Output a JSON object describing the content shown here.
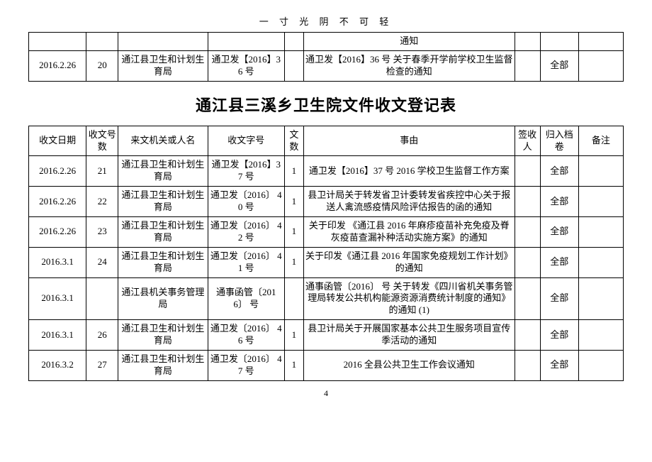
{
  "header_motto": "一 寸 光 阴 不 可 轻",
  "page_number": "4",
  "top_table": {
    "row0": {
      "c0": "",
      "c1": "",
      "c2": "",
      "c3": "",
      "c4": "",
      "c5": "通知",
      "c6": "",
      "c7": "",
      "c8": ""
    },
    "row1": {
      "c0": "2016.2.26",
      "c1": "20",
      "c2": "通江县卫生和计划生育局",
      "c3": "通卫发【2016】36 号",
      "c4": "",
      "c5": "通卫发【2016】36 号 关于春季开学前学校卫生监督检查的通知",
      "c6": "",
      "c7": "全部",
      "c8": ""
    }
  },
  "main_title": "通江县三溪乡卫生院文件收文登记表",
  "headers": {
    "h0": "收文日期",
    "h1": "收文号数",
    "h2": "来文机关或人名",
    "h3": "收文字号",
    "h4": "文数",
    "h5": "事由",
    "h6": "签收人",
    "h7": "归入档卷",
    "h8": "备注"
  },
  "rows": [
    {
      "c0": "2016.2.26",
      "c1": "21",
      "c2": "通江县卫生和计划生育局",
      "c3": "通卫发【2016】37 号",
      "c4": "1",
      "c5": "通卫发【2016】37 号 2016 学校卫生监督工作方案",
      "c6": "",
      "c7": "全部",
      "c8": ""
    },
    {
      "c0": "2016.2.26",
      "c1": "22",
      "c2": "通江县卫生和计划生育局",
      "c3": "通卫发〔2016〕 40  号",
      "c4": "1",
      "c5": "县卫计局关于转发省卫计委转发省疾控中心关于报送人禽流感疫情风险评估报告的函的通知",
      "c6": "",
      "c7": "全部",
      "c8": ""
    },
    {
      "c0": "2016.2.26",
      "c1": "23",
      "c2": "通江县卫生和计划生育局",
      "c3": "通卫发〔2016〕 42  号",
      "c4": "1",
      "c5": "关于印发 《通江县 2016 年麻疹疫苗补充免疫及脊灰疫苗查漏补种活动实施方案》的通知",
      "c6": "",
      "c7": "全部",
      "c8": ""
    },
    {
      "c0": "2016.3.1",
      "c1": "24",
      "c2": "通江县卫生和计划生育局",
      "c3": "通卫发〔2016〕  41 号",
      "c4": "1",
      "c5": "关于印发《通江县 2016 年国家免疫规划工作计划》的通知",
      "c6": "",
      "c7": "全部",
      "c8": ""
    },
    {
      "c0": "2016.3.1",
      "c1": "",
      "c2": "通江县机关事务管理局",
      "c3": "通事函管〔2016〕  号",
      "c4": "",
      "c5": "通事函管〔2016〕  号 关于转发《四川省机关事务管理局转发公共机构能源资源消费统计制度的通知》的通知 (1)",
      "c6": "",
      "c7": "全部",
      "c8": ""
    },
    {
      "c0": "2016.3.1",
      "c1": "26",
      "c2": "通江县卫生和计划生育局",
      "c3": "通卫发〔2016〕 46  号",
      "c4": "1",
      "c5": "县卫计局关于开展国家基本公共卫生服务项目宣传季活动的通知",
      "c6": "",
      "c7": "全部",
      "c8": ""
    },
    {
      "c0": "2016.3.2",
      "c1": "27",
      "c2": "通江县卫生和计划生育局",
      "c3": "通卫发〔2016〕 47  号",
      "c4": "1",
      "c5": "2016 全县公共卫生工作会议通知",
      "c6": "",
      "c7": "全部",
      "c8": ""
    }
  ]
}
